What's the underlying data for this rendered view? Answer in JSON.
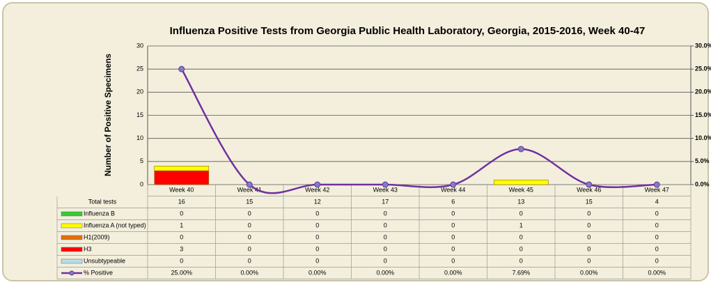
{
  "chart_data": {
    "type": "bar",
    "stacked": true,
    "title": "Influenza Positive Tests from Georgia  Public Health Laboratory,  Georgia, 2015-2016, Week 40-47",
    "ylabel": "Number of Positive Specimens",
    "categories": [
      "Week 40",
      "Week 41",
      "Week 42",
      "Week 43",
      "Week 44",
      "Week 45",
      "Week 46",
      "Week 47"
    ],
    "ylim": [
      0,
      30
    ],
    "yticks": [
      0,
      5,
      10,
      15,
      20,
      25,
      30
    ],
    "y2lim": [
      0,
      30
    ],
    "y2ticks": [
      {
        "value": 0,
        "label": "0.0%"
      },
      {
        "value": 5,
        "label": "5.0%"
      },
      {
        "value": 10,
        "label": "10.0%"
      },
      {
        "value": 15,
        "label": "15.0%"
      },
      {
        "value": 20,
        "label": "20.0%"
      },
      {
        "value": 25,
        "label": "25.0%"
      },
      {
        "value": 30,
        "label": "30.0%"
      }
    ],
    "grid": true,
    "total_tests": {
      "name": "Total tests",
      "values": [
        16,
        15,
        12,
        17,
        6,
        13,
        15,
        4
      ]
    },
    "series": [
      {
        "name": "Influenza B",
        "color": "#33cc33",
        "values": [
          0,
          0,
          0,
          0,
          0,
          0,
          0,
          0
        ]
      },
      {
        "name": "Influenza A (not typed)",
        "color": "#ffff00",
        "values": [
          1,
          0,
          0,
          0,
          0,
          1,
          0,
          0
        ]
      },
      {
        "name": "H1(2009)",
        "color": "#e46c0a",
        "values": [
          0,
          0,
          0,
          0,
          0,
          0,
          0,
          0
        ]
      },
      {
        "name": "H3",
        "color": "#ff0000",
        "values": [
          3,
          0,
          0,
          0,
          0,
          0,
          0,
          0
        ]
      },
      {
        "name": "Unsubtypeable",
        "color": "#b7dde8",
        "values": [
          0,
          0,
          0,
          0,
          0,
          0,
          0,
          0
        ]
      },
      {
        "name": "% Positive",
        "type": "line",
        "axis": "y2",
        "color": "#7030a0",
        "values": [
          25,
          0,
          0,
          0,
          0,
          7.69,
          0,
          0
        ],
        "value_labels": [
          "25.00%",
          "0.00%",
          "0.00%",
          "0.00%",
          "0.00%",
          "7.69%",
          "0.00%",
          "0.00%"
        ]
      }
    ]
  }
}
